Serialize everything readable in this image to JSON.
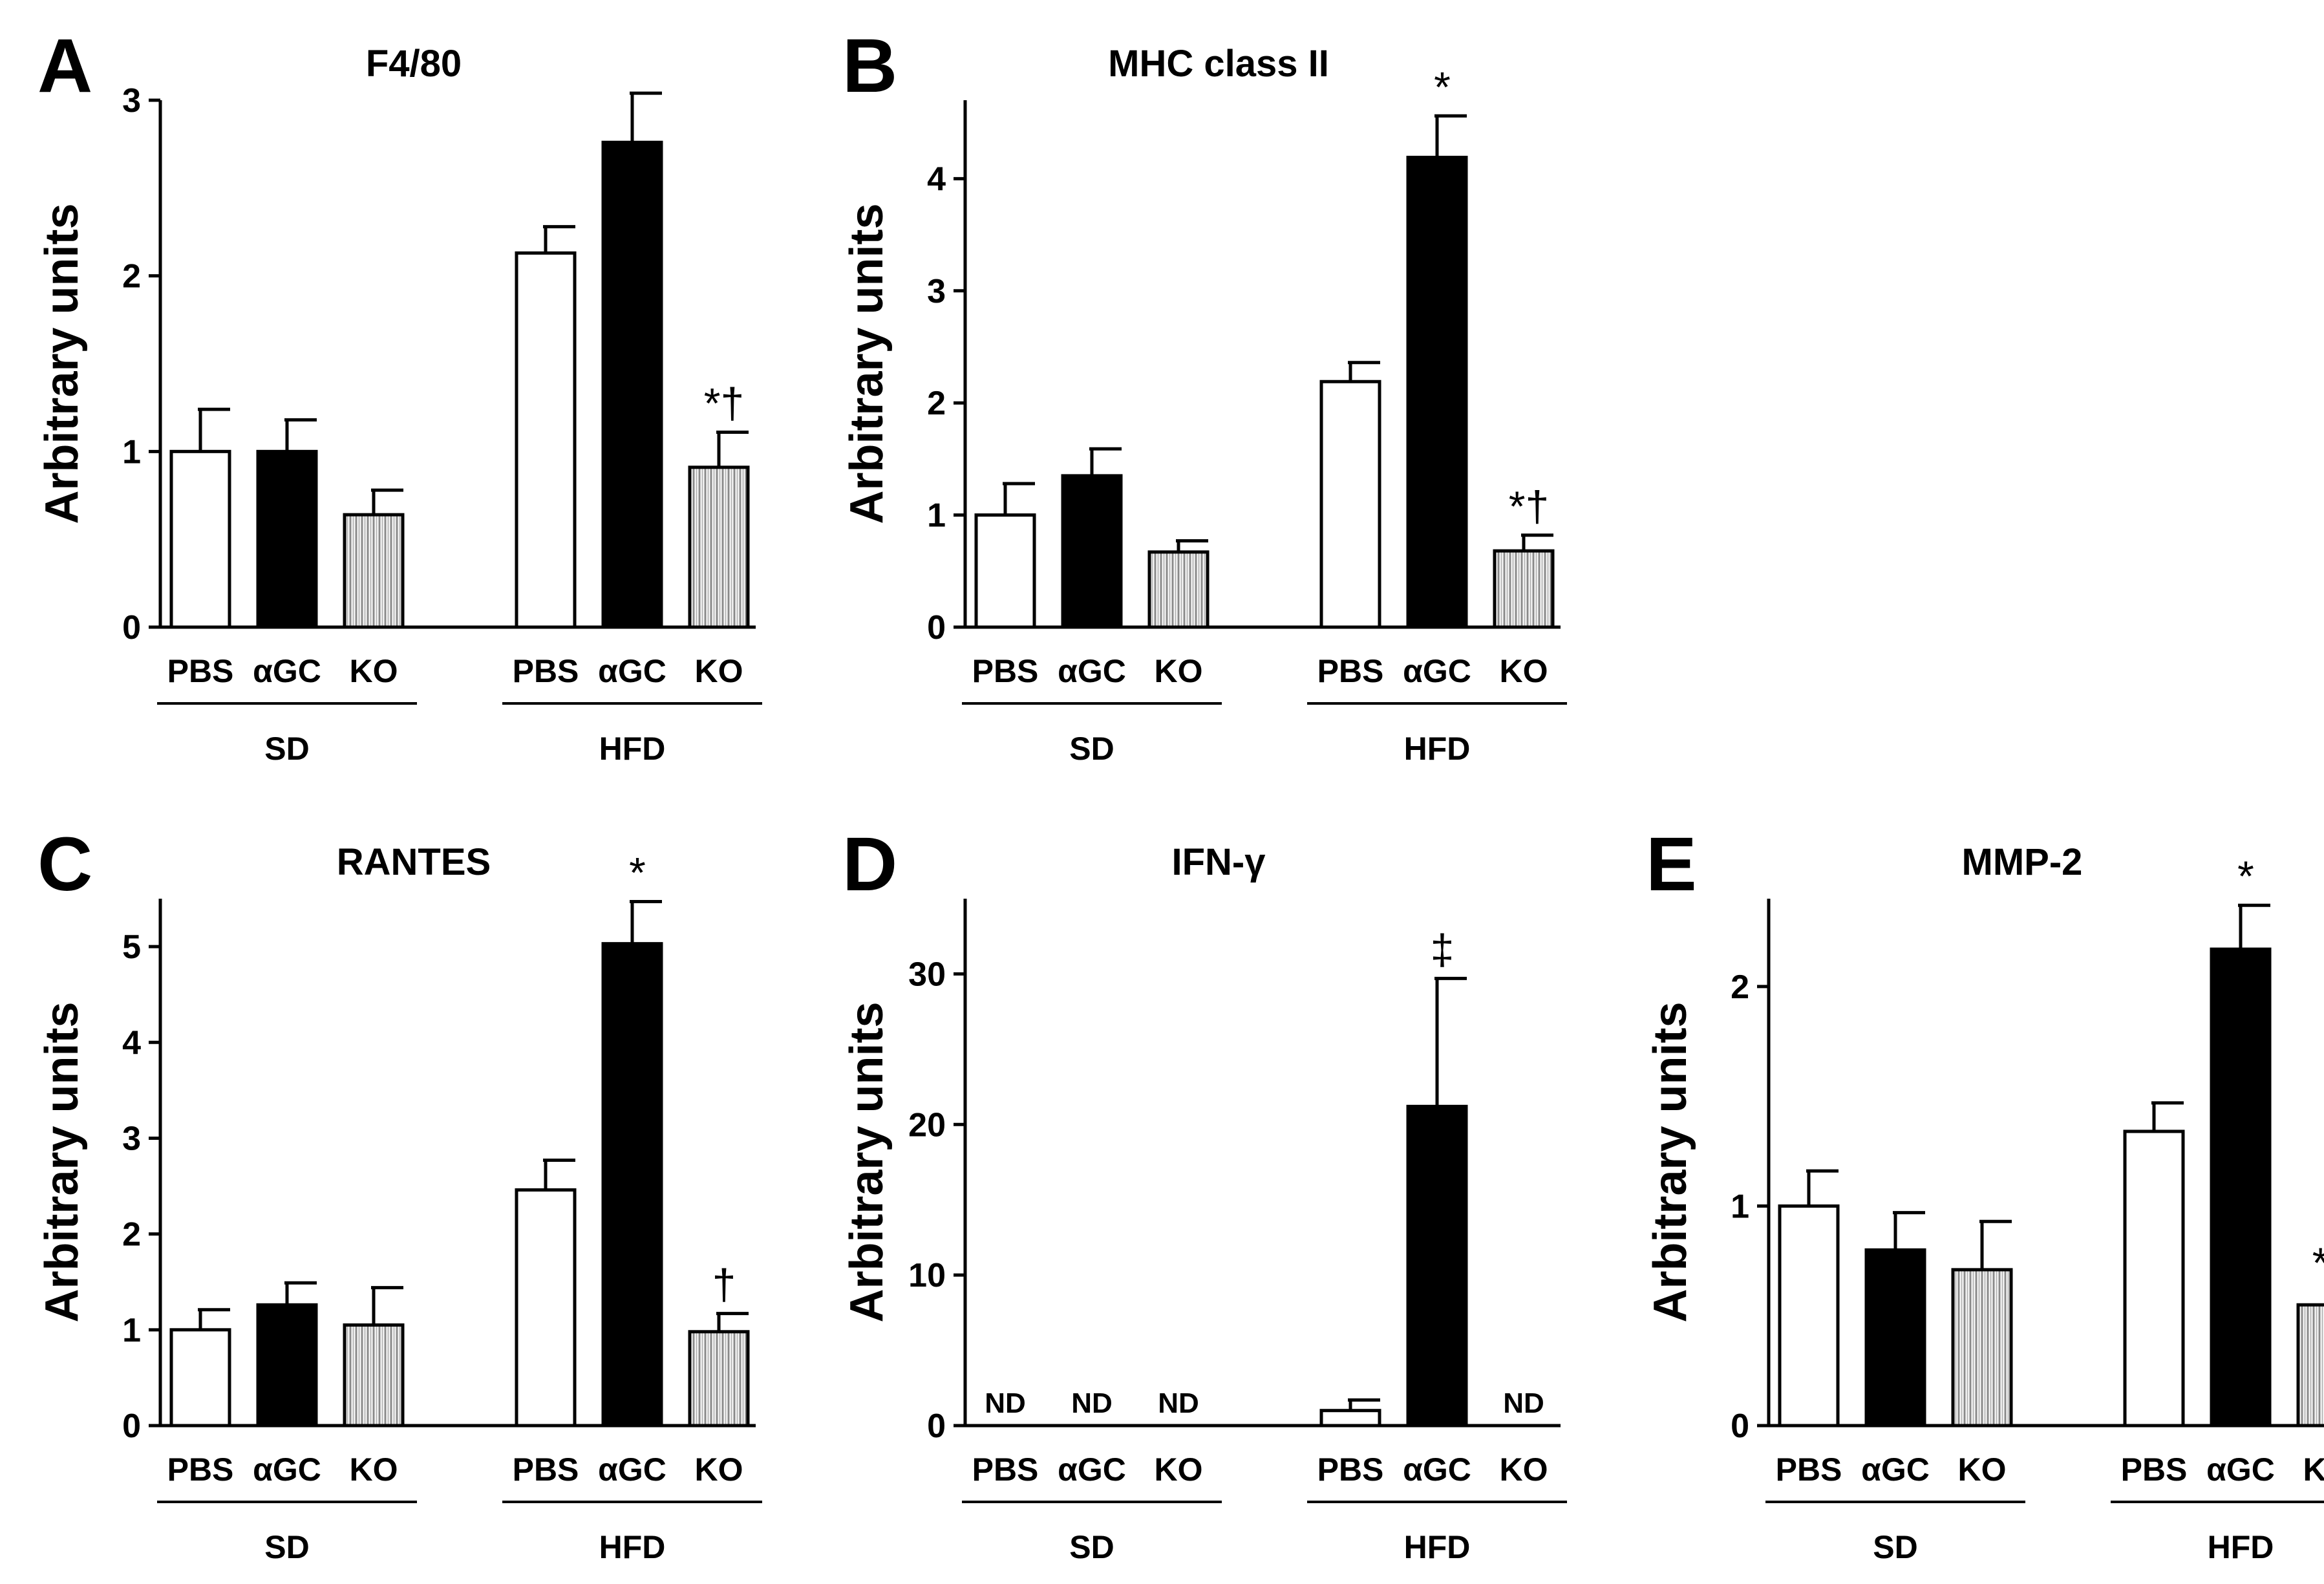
{
  "chart_data": [
    {
      "panel": "A",
      "type": "bar",
      "title": "F4/80",
      "ylabel": "Arbitrary units",
      "ylim": [
        0,
        3
      ],
      "yticks": [
        0,
        1,
        2,
        3
      ],
      "categories": [
        "PBS",
        "αGC",
        "KO",
        "PBS",
        "αGC",
        "KO"
      ],
      "groups": [
        {
          "label": "SD",
          "indices": [
            0,
            1,
            2
          ]
        },
        {
          "label": "HFD",
          "indices": [
            3,
            4,
            5
          ]
        }
      ],
      "fills": [
        "white",
        "black",
        "hatched",
        "white",
        "black",
        "hatched"
      ],
      "values": [
        1.0,
        1.0,
        0.64,
        2.13,
        2.76,
        0.91
      ],
      "errors": [
        0.24,
        0.18,
        0.14,
        0.15,
        0.28,
        0.2
      ],
      "annotations": [
        "",
        "",
        "",
        "",
        "",
        "*†"
      ]
    },
    {
      "panel": "B",
      "type": "bar",
      "title": "MHC class II",
      "ylabel": "Arbitrary units",
      "ylim": [
        0,
        4.7
      ],
      "yticks": [
        0,
        1,
        2,
        3,
        4
      ],
      "categories": [
        "PBS",
        "αGC",
        "KO",
        "PBS",
        "αGC",
        "KO"
      ],
      "groups": [
        {
          "label": "SD",
          "indices": [
            0,
            1,
            2
          ]
        },
        {
          "label": "HFD",
          "indices": [
            3,
            4,
            5
          ]
        }
      ],
      "fills": [
        "white",
        "black",
        "hatched",
        "white",
        "black",
        "hatched"
      ],
      "values": [
        1.0,
        1.35,
        0.67,
        2.19,
        4.19,
        0.68
      ],
      "errors": [
        0.28,
        0.24,
        0.1,
        0.17,
        0.37,
        0.14
      ],
      "annotations": [
        "",
        "",
        "",
        "",
        "*",
        "*†"
      ]
    },
    {
      "panel": "C",
      "type": "bar",
      "title": "RANTES",
      "ylabel": "Arbitrary units",
      "ylim": [
        0,
        5.5
      ],
      "yticks": [
        0,
        1,
        2,
        3,
        4,
        5
      ],
      "categories": [
        "PBS",
        "αGC",
        "KO",
        "PBS",
        "αGC",
        "KO"
      ],
      "groups": [
        {
          "label": "SD",
          "indices": [
            0,
            1,
            2
          ]
        },
        {
          "label": "HFD",
          "indices": [
            3,
            4,
            5
          ]
        }
      ],
      "fills": [
        "white",
        "black",
        "hatched",
        "white",
        "black",
        "hatched"
      ],
      "values": [
        1.0,
        1.26,
        1.05,
        2.46,
        5.03,
        0.98
      ],
      "errors": [
        0.21,
        0.23,
        0.39,
        0.31,
        0.44,
        0.19
      ],
      "annotations": [
        "",
        "",
        "",
        "",
        "*",
        "†"
      ]
    },
    {
      "panel": "D",
      "type": "bar",
      "title": "IFN-γ",
      "ylabel": "Arbitrary units",
      "ylim": [
        0,
        35
      ],
      "yticks": [
        0,
        10,
        20,
        30
      ],
      "categories": [
        "PBS",
        "αGC",
        "KO",
        "PBS",
        "αGC",
        "KO"
      ],
      "groups": [
        {
          "label": "SD",
          "indices": [
            0,
            1,
            2
          ]
        },
        {
          "label": "HFD",
          "indices": [
            3,
            4,
            5
          ]
        }
      ],
      "fills": [
        "white",
        "black",
        "hatched",
        "white",
        "black",
        "hatched"
      ],
      "values": [
        null,
        null,
        null,
        1.0,
        21.2,
        null
      ],
      "errors": [
        0,
        0,
        0,
        0.7,
        8.5,
        0
      ],
      "annotations": [
        "ND",
        "ND",
        "ND",
        "",
        "‡",
        "ND"
      ]
    },
    {
      "panel": "E",
      "type": "bar",
      "title": "MMP-2",
      "ylabel": "Arbitrary units",
      "ylim": [
        0,
        2.4
      ],
      "yticks": [
        0,
        1,
        2
      ],
      "categories": [
        "PBS",
        "αGC",
        "KO",
        "PBS",
        "αGC",
        "KO"
      ],
      "groups": [
        {
          "label": "SD",
          "indices": [
            0,
            1,
            2
          ]
        },
        {
          "label": "HFD",
          "indices": [
            3,
            4,
            5
          ]
        }
      ],
      "fills": [
        "white",
        "black",
        "hatched",
        "white",
        "black",
        "hatched"
      ],
      "values": [
        1.0,
        0.8,
        0.71,
        1.34,
        2.17,
        0.55
      ],
      "errors": [
        0.16,
        0.17,
        0.22,
        0.13,
        0.2,
        0.06
      ],
      "annotations": [
        "",
        "",
        "",
        "",
        "*",
        "*†"
      ]
    }
  ]
}
